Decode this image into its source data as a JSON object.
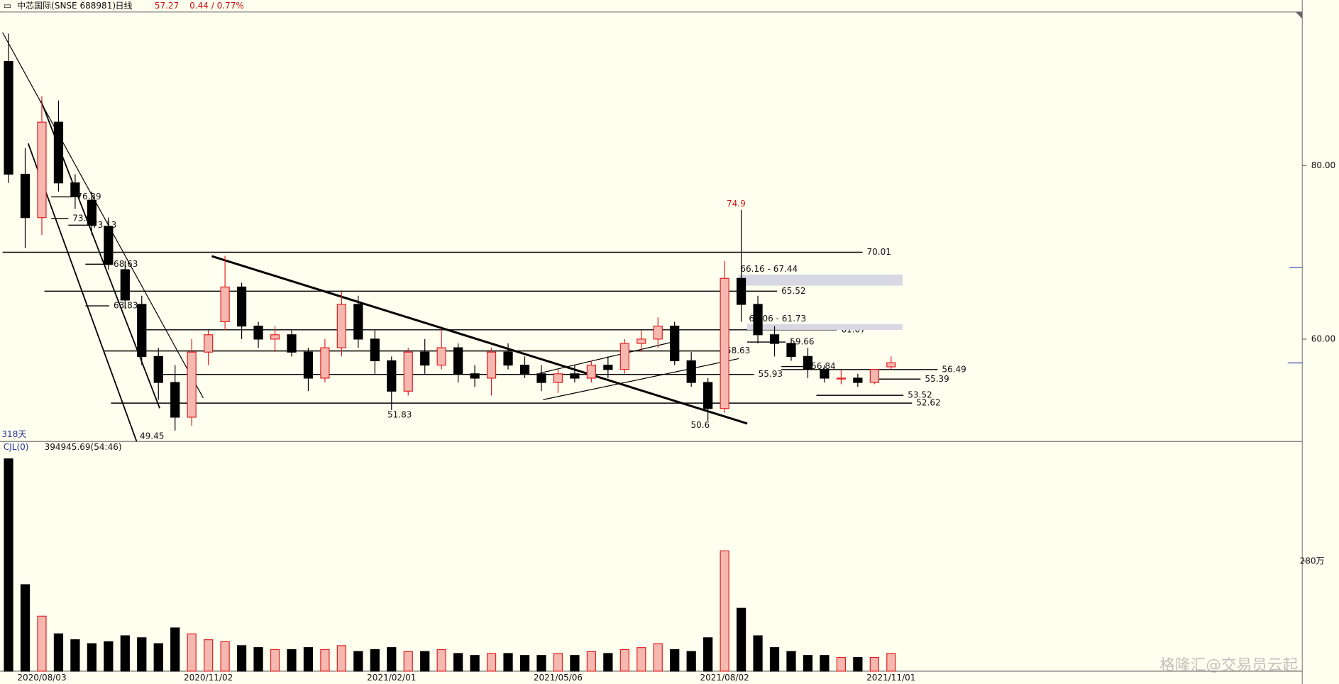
{
  "chart_data": {
    "type": "candlestick",
    "title": "中芯国际(SNSE 688981)",
    "period": "日线",
    "last": 57.27,
    "change_label": "0.44 / 0.77%",
    "span_label": "318天",
    "indicator": "CJL(0)",
    "indicator_value": "394945.69(54:46)",
    "watermark": "格隆汇@交易员云起",
    "categories": [
      null,
      null,
      "2020/08/03",
      null,
      null,
      null,
      null,
      null,
      null,
      null,
      null,
      null,
      "2020/11/02",
      null,
      null,
      null,
      null,
      null,
      null,
      null,
      null,
      null,
      null,
      "2021/02/01",
      null,
      null,
      null,
      null,
      null,
      null,
      null,
      null,
      null,
      "2021/05/06",
      null,
      null,
      null,
      null,
      null,
      null,
      null,
      null,
      null,
      "2021/08/02",
      null,
      null,
      null,
      null,
      null,
      null,
      null,
      null,
      null,
      "2021/11/01"
    ],
    "open": [
      92,
      79,
      74,
      85,
      78,
      76,
      73,
      68,
      64,
      58,
      55,
      51,
      58.5,
      62,
      66,
      61.5,
      60,
      60.5,
      58.5,
      55.5,
      59,
      64,
      60,
      57.5,
      54,
      58.5,
      57,
      59,
      56,
      55.5,
      58.5,
      57,
      56,
      55,
      56,
      55.5,
      57,
      56.5,
      59.5,
      60,
      61.5,
      57.5,
      55,
      52,
      67,
      64,
      60.5,
      59.5,
      58,
      56.5,
      55.5,
      55.5,
      55,
      56.8
    ],
    "high": [
      95.2,
      82,
      88,
      87.5,
      79,
      77,
      74,
      69,
      65,
      59,
      57,
      60,
      61,
      69.6,
      66.5,
      62,
      61.5,
      61,
      59,
      60,
      65.5,
      65,
      61,
      58,
      59,
      60,
      61.1,
      59.5,
      57,
      59,
      59.5,
      58,
      57,
      56.5,
      57,
      57.5,
      58,
      60,
      61,
      62.5,
      62,
      58.5,
      55.5,
      69,
      74.9,
      65,
      61.5,
      60,
      59,
      57,
      56.5,
      56,
      56.5,
      58
    ],
    "low": [
      78,
      70.5,
      72,
      77,
      75,
      72,
      68,
      63.5,
      57,
      53,
      49.45,
      50,
      57,
      61,
      60,
      59,
      58.5,
      58,
      54,
      55,
      58,
      59,
      56,
      51.83,
      53.5,
      56,
      56.5,
      55,
      54.5,
      53.5,
      56.5,
      55.5,
      54,
      53.8,
      55,
      55,
      55.5,
      56,
      58.5,
      59,
      57,
      54.5,
      50.6,
      51.5,
      62,
      59.5,
      58,
      57.5,
      55.5,
      55,
      54.8,
      54.5,
      54.8,
      56.5
    ],
    "close": [
      79,
      74,
      85,
      78,
      76.4,
      73.1,
      68.6,
      64.5,
      58,
      55,
      51,
      58.5,
      60.5,
      66,
      61.5,
      60,
      60.5,
      58.5,
      55.5,
      59,
      64,
      60,
      57.5,
      54,
      58.5,
      57,
      59,
      56,
      55.5,
      58.5,
      57,
      56,
      55,
      56,
      55.5,
      57,
      56.5,
      59.5,
      60,
      61.5,
      57.5,
      55,
      52,
      67,
      64,
      60.5,
      59.5,
      58,
      56.5,
      55.5,
      55.5,
      55,
      56.5,
      57.27
    ],
    "volume": [
      540,
      220,
      140,
      95,
      80,
      70,
      75,
      90,
      85,
      70,
      110,
      95,
      80,
      75,
      65,
      60,
      55,
      55,
      60,
      55,
      65,
      50,
      55,
      60,
      50,
      50,
      55,
      45,
      40,
      45,
      45,
      40,
      40,
      45,
      40,
      50,
      45,
      55,
      60,
      70,
      55,
      50,
      85,
      306,
      160,
      90,
      60,
      50,
      40,
      40,
      35,
      35,
      35,
      45
    ],
    "up_color": "#e02020",
    "down_color": "#000000",
    "ylim": [
      48.2,
      97.6
    ],
    "yticks": [
      {
        "value": 80,
        "label": "80.00"
      },
      {
        "value": 60,
        "label": "60.00"
      }
    ],
    "vol_ylim": [
      0,
      556
    ],
    "vol_yticks": [
      {
        "value": 280,
        "label": "280万"
      }
    ],
    "levels": [
      70.01,
      65.52,
      61.07,
      58.63,
      55.93,
      52.62,
      56.49,
      55.39,
      53.52,
      59.66,
      76.39,
      73.91,
      73.13,
      68.63,
      63.83,
      56.84
    ],
    "zones": [
      {
        "values": [
          66.16,
          67.44
        ],
        "label": "66.16 - 67.44"
      },
      {
        "values": [
          61.06,
          61.73
        ],
        "label": "61.06 - 61.73"
      }
    ],
    "extremes": [
      {
        "value": 74.9,
        "color": "#d01010"
      },
      {
        "value": 49.45,
        "color": "#111111"
      },
      {
        "value": 51.83,
        "color": "#111111"
      },
      {
        "value": 50.6,
        "color": "#111111"
      }
    ]
  }
}
